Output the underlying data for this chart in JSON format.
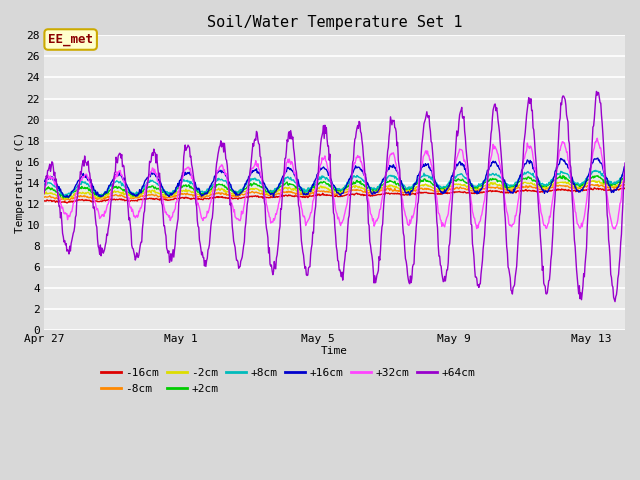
{
  "title": "Soil/Water Temperature Set 1",
  "xlabel": "Time",
  "ylabel": "Temperature (C)",
  "ylim": [
    0,
    28
  ],
  "yticks": [
    0,
    2,
    4,
    6,
    8,
    10,
    12,
    14,
    16,
    18,
    20,
    22,
    24,
    26,
    28
  ],
  "annotation_text": "EE_met",
  "annotation_box_facecolor": "#ffffcc",
  "annotation_box_edgecolor": "#ccaa00",
  "annotation_text_color": "#8b0000",
  "fig_bg_color": "#d8d8d8",
  "plot_bg_color": "#e8e8e8",
  "grid_color": "#ffffff",
  "series": [
    {
      "label": "-16cm",
      "color": "#dd0000"
    },
    {
      "label": "-8cm",
      "color": "#ff8800"
    },
    {
      "label": "-2cm",
      "color": "#dddd00"
    },
    {
      "label": "+2cm",
      "color": "#00cc00"
    },
    {
      "label": "+8cm",
      "color": "#00bbbb"
    },
    {
      "label": "+16cm",
      "color": "#0000cc"
    },
    {
      "label": "+32cm",
      "color": "#ff44ff"
    },
    {
      "label": "+64cm",
      "color": "#9900cc"
    }
  ],
  "xtick_labels": [
    "Apr 27",
    "May 1",
    "May 5",
    "May 9",
    "May 13"
  ],
  "xtick_positions": [
    0,
    4,
    8,
    12,
    16
  ],
  "n_days": 17
}
